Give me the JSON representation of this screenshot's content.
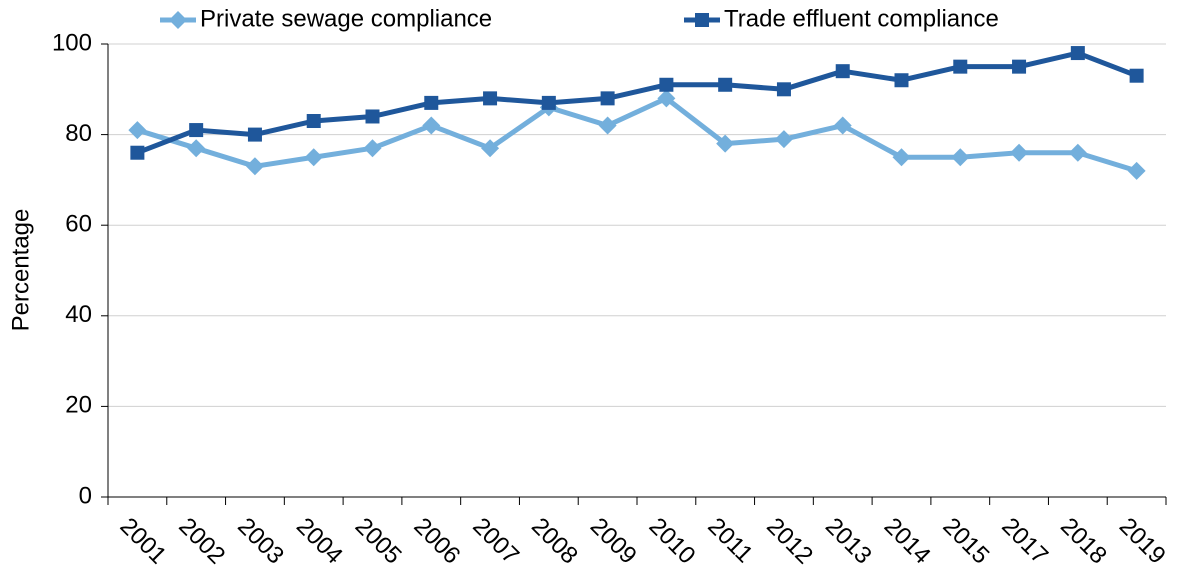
{
  "chart_data": {
    "type": "line",
    "y_label": "Percentage",
    "categories": [
      "2001",
      "2002",
      "2003",
      "2004",
      "2005",
      "2006",
      "2007",
      "2008",
      "2009",
      "2010",
      "2011",
      "2012",
      "2013",
      "2014",
      "2015",
      "2017",
      "2018",
      "2019"
    ],
    "series": [
      {
        "name": "Private sewage compliance",
        "color": "#73afdc",
        "marker": "diamond",
        "values": [
          81,
          77,
          73,
          75,
          77,
          82,
          77,
          86,
          82,
          88,
          78,
          79,
          82,
          75,
          75,
          76,
          76,
          72
        ]
      },
      {
        "name": "Trade effluent compliance",
        "color": "#1f579b",
        "marker": "square",
        "values": [
          76,
          81,
          80,
          83,
          84,
          87,
          88,
          87,
          88,
          91,
          91,
          90,
          94,
          92,
          95,
          95,
          98,
          93
        ]
      }
    ],
    "ylim": [
      0,
      100
    ],
    "yticks": [
      0,
      20,
      40,
      60,
      80,
      100
    ],
    "grid": true,
    "legend": "top"
  }
}
